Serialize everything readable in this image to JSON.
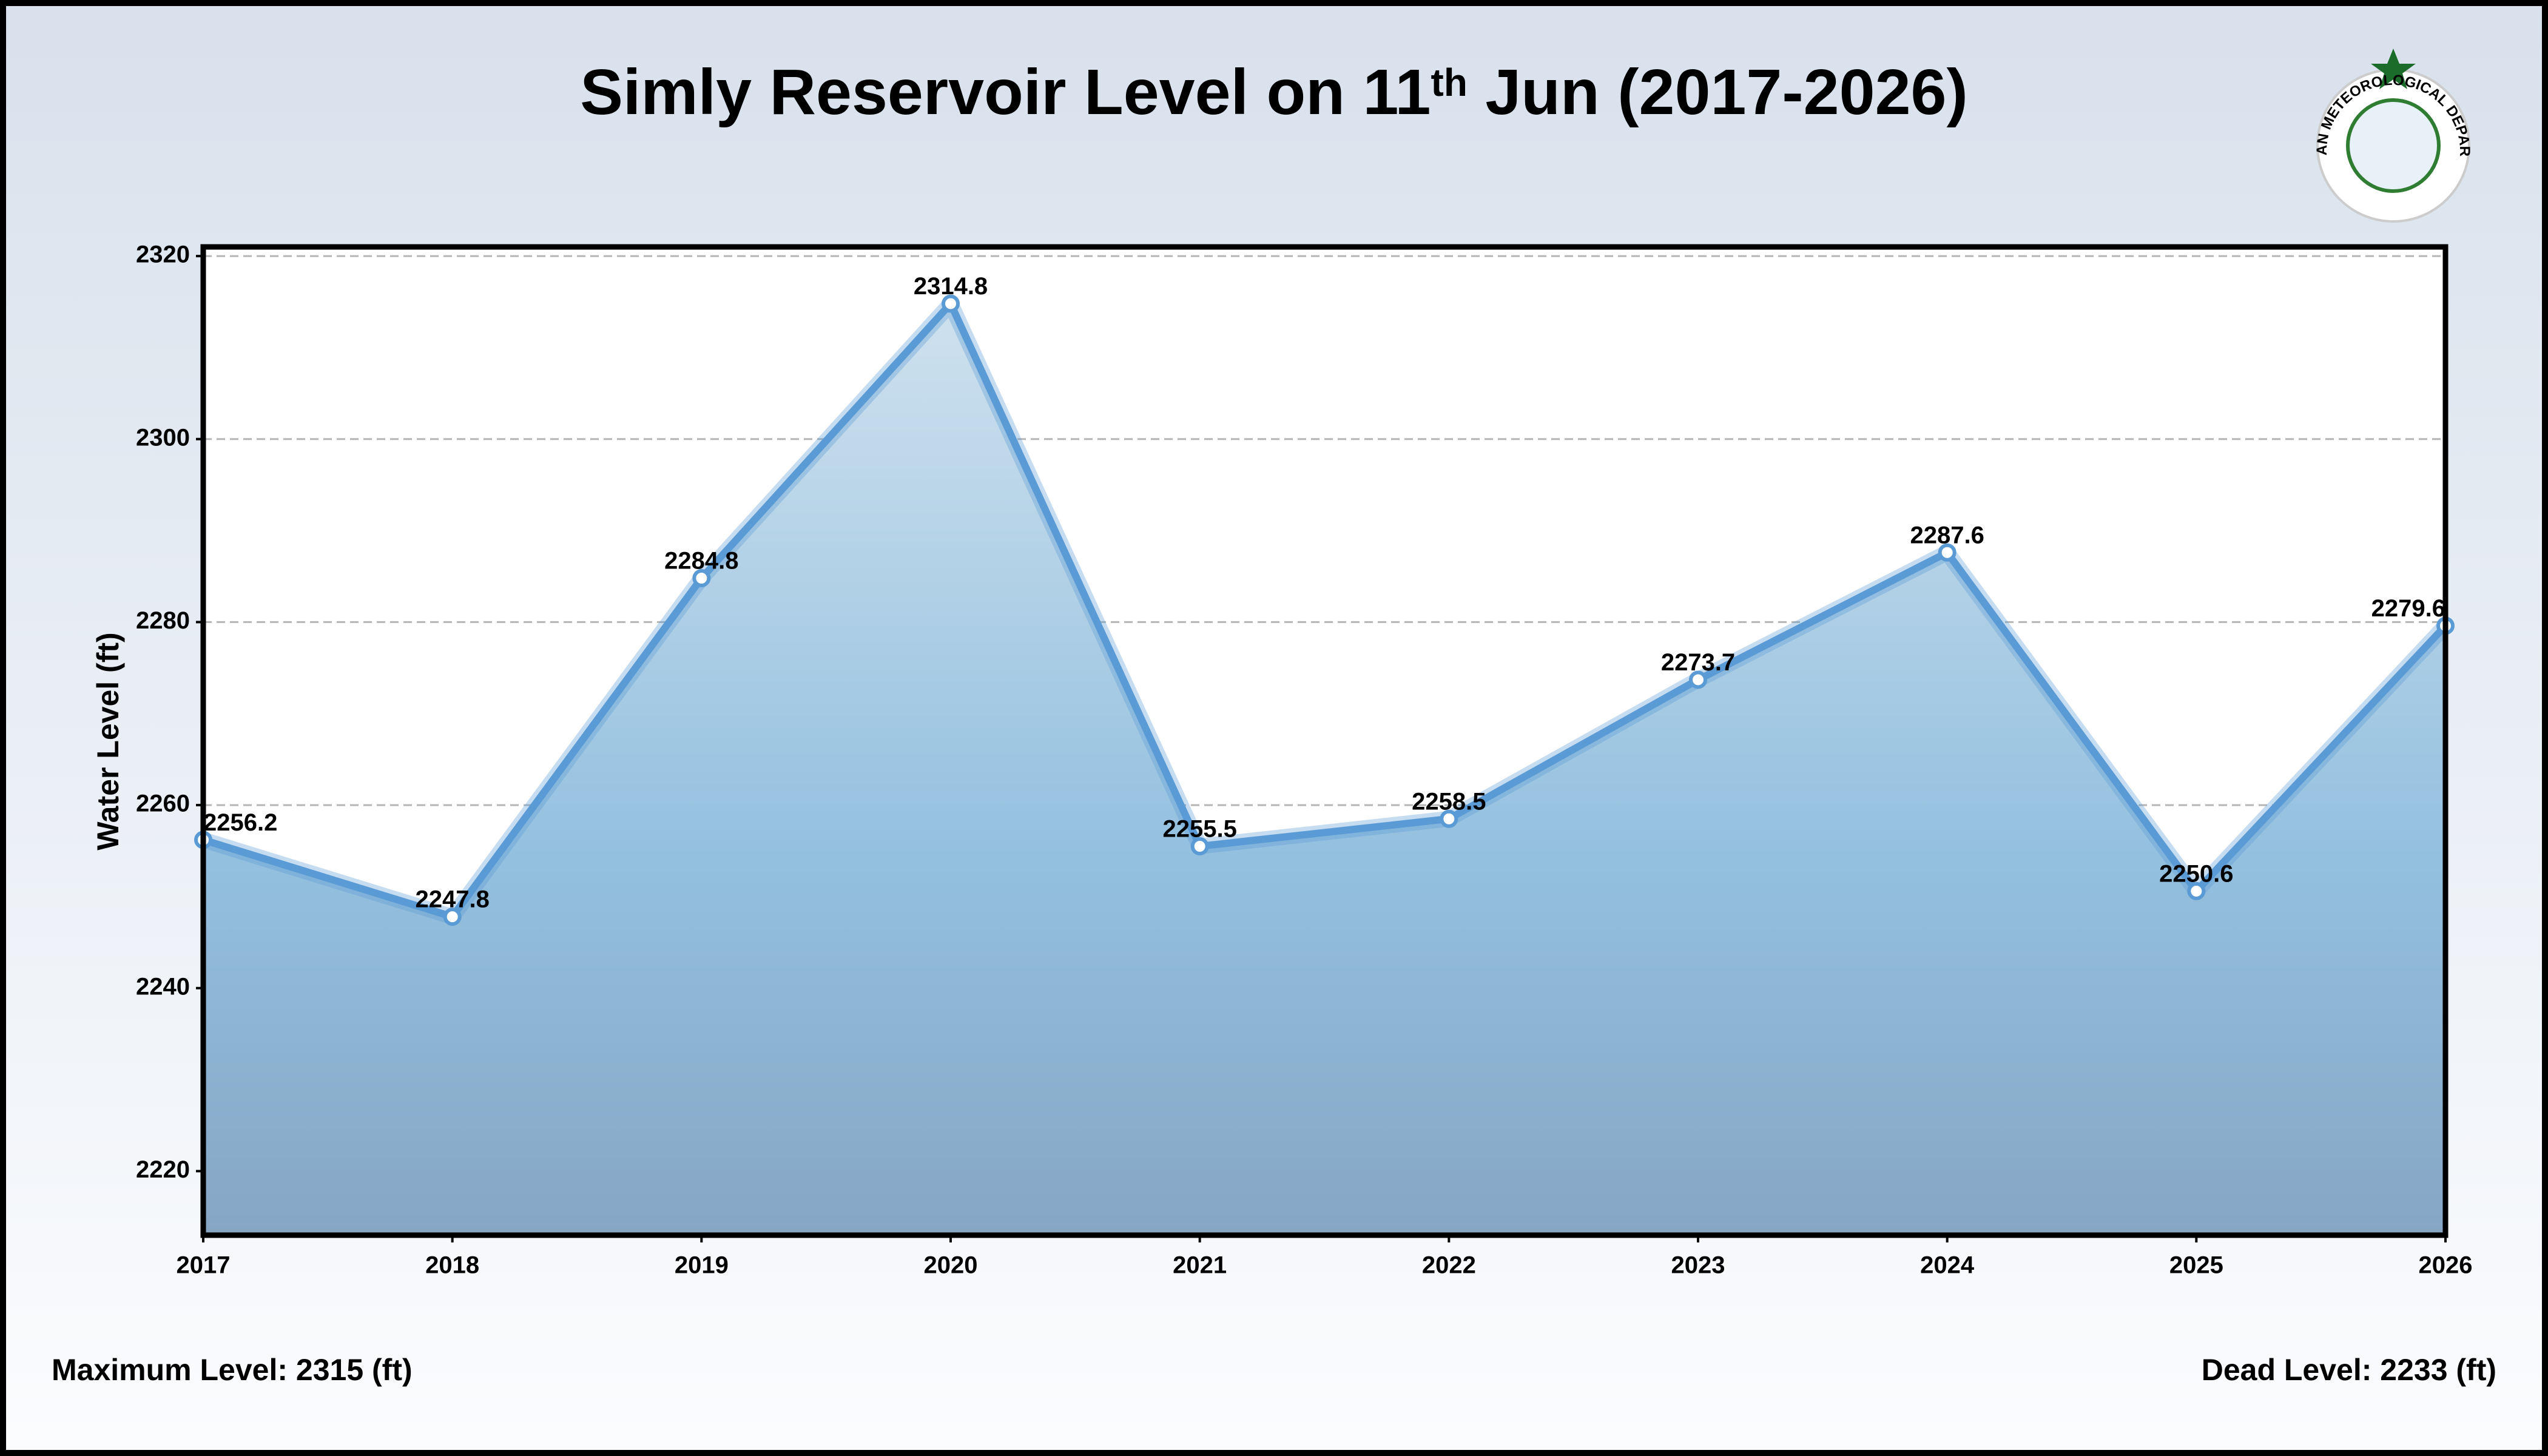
{
  "chart_data": {
    "type": "area-line",
    "title": [
      "Simly Reservoir Level on 11",
      "th",
      " Jun (2017-2026)"
    ],
    "y_label": "Water Level (ft)",
    "x": [
      2017,
      2018,
      2019,
      2020,
      2021,
      2022,
      2023,
      2024,
      2025,
      2026
    ],
    "series": [
      {
        "name": "Water Level",
        "color": "#5b9bd5",
        "values": [
          2256.2,
          2247.8,
          2284.8,
          2314.8,
          2255.5,
          2258.5,
          2273.7,
          2287.6,
          2250.6,
          2279.6
        ]
      }
    ],
    "xlim": [
      2017,
      2026
    ],
    "xticks": [
      2017,
      2018,
      2019,
      2020,
      2021,
      2022,
      2023,
      2024,
      2025,
      2026
    ],
    "ylim": [
      2213,
      2321
    ],
    "yticks": [
      2220,
      2240,
      2260,
      2280,
      2300,
      2320
    ],
    "grid": true,
    "footer_left": "Maximum Level: 2315 (ft)",
    "footer_right": "Dead Level: 2233 (ft)",
    "logo_text": "PAKISTAN METEOROLOGICAL DEPARTMENT"
  }
}
